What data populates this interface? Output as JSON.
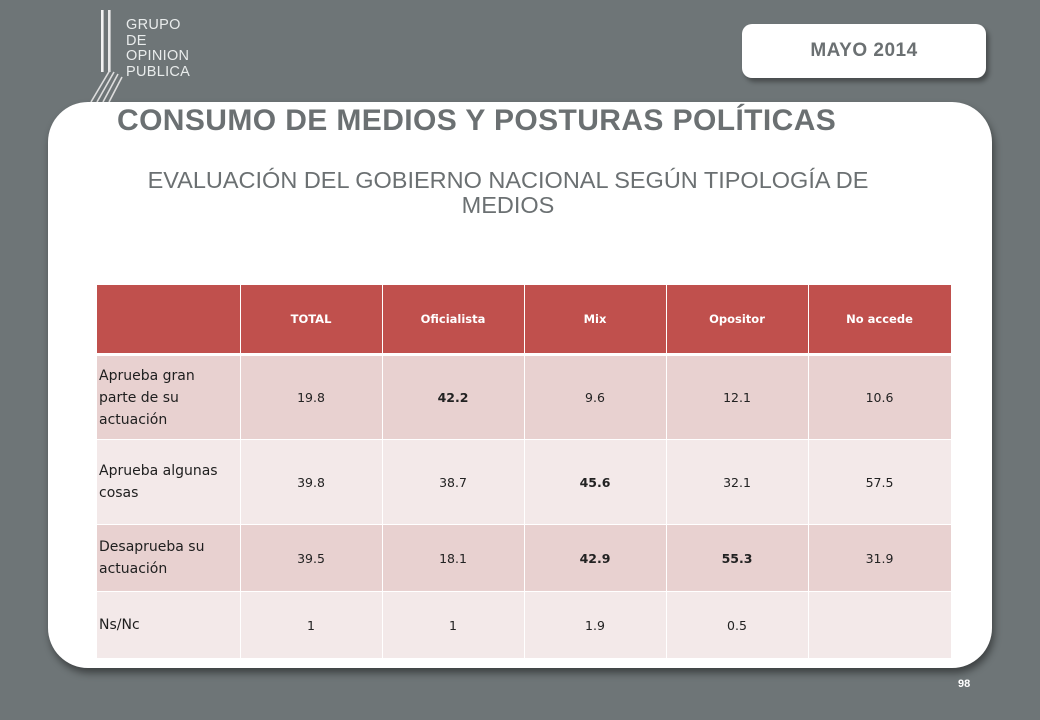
{
  "logo": {
    "lines": [
      "GRUPO",
      "DE",
      "OPINION",
      "PUBLICA"
    ]
  },
  "date": "MAYO 2014",
  "title": "CONSUMO DE MEDIOS  Y POSTURAS POLÍTICAS",
  "subtitle": "EVALUACIÓN DEL GOBIERNO NACIONAL SEGÚN TIPOLOGÍA DE MEDIOS",
  "table": {
    "headers": [
      "",
      "TOTAL",
      "Oficialista",
      "Mix",
      "Opositor",
      "No accede"
    ],
    "rows": [
      {
        "label": "Aprueba gran parte de su actuación",
        "values": [
          "19.8",
          "42.2",
          "9.6",
          "12.1",
          "10.6"
        ]
      },
      {
        "label": "Aprueba algunas cosas",
        "values": [
          "39.8",
          "38.7",
          "45.6",
          "32.1",
          "57.5"
        ]
      },
      {
        "label": "Desaprueba su actuación",
        "values": [
          "39.5",
          "18.1",
          "42.9",
          "55.3",
          "31.9"
        ]
      },
      {
        "label": "Ns/Nc",
        "values": [
          "1",
          "1",
          "1.9",
          "0.5",
          ""
        ]
      }
    ]
  },
  "page_number": "98",
  "colors": {
    "background": "#6e7577",
    "header": "#c0504d",
    "row_odd": "#e8d1d0",
    "row_even": "#f3e9e9",
    "title_text": "#6b7072"
  }
}
